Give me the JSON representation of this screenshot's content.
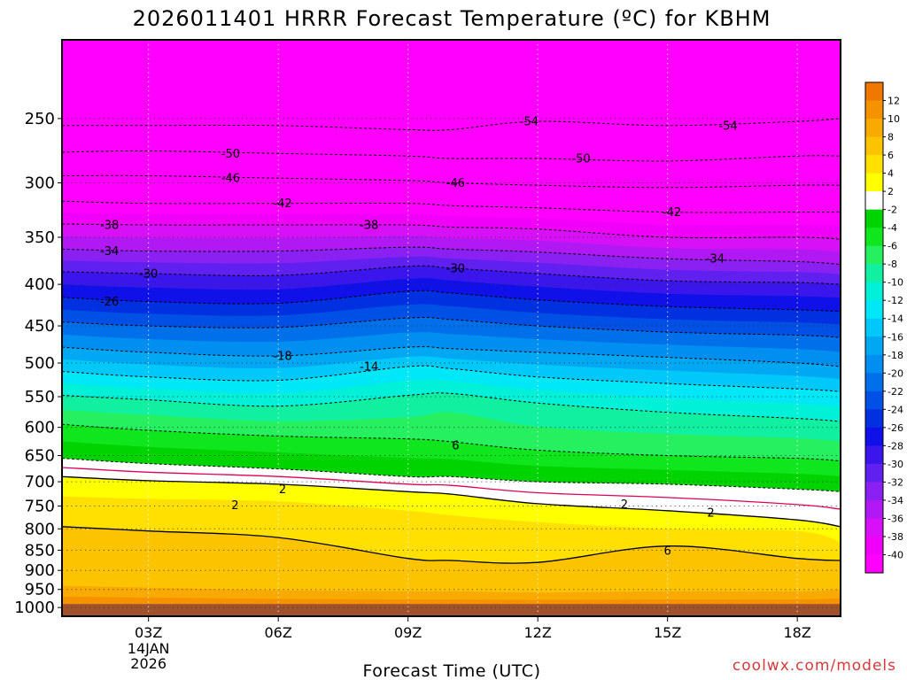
{
  "chart_data": {
    "type": "heatmap",
    "title": "2026011401 HRRR Forecast Temperature (ºC) for KBHM",
    "xlabel": "Forecast Time (UTC)",
    "ylabel": "",
    "x_ticks": [
      {
        "hour": 3,
        "label": "03Z",
        "sub": [
          "14JAN",
          "2026"
        ]
      },
      {
        "hour": 6,
        "label": "06Z",
        "sub": []
      },
      {
        "hour": 9,
        "label": "09Z",
        "sub": []
      },
      {
        "hour": 12,
        "label": "12Z",
        "sub": []
      },
      {
        "hour": 15,
        "label": "15Z",
        "sub": []
      },
      {
        "hour": 18,
        "label": "18Z",
        "sub": []
      }
    ],
    "xlim": [
      1,
      19
    ],
    "y_ticks": [
      250,
      300,
      350,
      400,
      450,
      500,
      550,
      600,
      650,
      700,
      750,
      800,
      850,
      900,
      950,
      1000
    ],
    "ylim": [
      200,
      1025
    ],
    "y_scale": "log",
    "grid": true,
    "underground_color": "#a0522d",
    "colorbar": {
      "levels": [
        -40,
        -38,
        -36,
        -34,
        -32,
        -30,
        -28,
        -26,
        -24,
        -22,
        -20,
        -18,
        -16,
        -14,
        -12,
        -10,
        -8,
        -6,
        -4,
        -2,
        2,
        4,
        6,
        8,
        10,
        12
      ],
      "labels": [
        "12",
        "10",
        "8",
        "6",
        "4",
        "2",
        "-2",
        "-4",
        "-6",
        "-8",
        "-10",
        "-12",
        "-14",
        "-16",
        "-18",
        "-20",
        "-22",
        "-24",
        "-26",
        "-28",
        "-30",
        "-32",
        "-34",
        "-36",
        "-38",
        "-40"
      ],
      "bins": [
        {
          "lo": 12,
          "hi": 14,
          "color": "#f07800"
        },
        {
          "lo": 10,
          "hi": 12,
          "color": "#f59200"
        },
        {
          "lo": 8,
          "hi": 10,
          "color": "#f9aa00"
        },
        {
          "lo": 6,
          "hi": 8,
          "color": "#fcc400"
        },
        {
          "lo": 4,
          "hi": 6,
          "color": "#ffe000"
        },
        {
          "lo": 2,
          "hi": 4,
          "color": "#ffff00"
        },
        {
          "lo": -2,
          "hi": 2,
          "color": "#ffffff"
        },
        {
          "lo": -4,
          "hi": -2,
          "color": "#00d400"
        },
        {
          "lo": -6,
          "hi": -4,
          "color": "#10e61e"
        },
        {
          "lo": -8,
          "hi": -6,
          "color": "#26f060"
        },
        {
          "lo": -10,
          "hi": -8,
          "color": "#10f0a0"
        },
        {
          "lo": -12,
          "hi": -10,
          "color": "#00f0d8"
        },
        {
          "lo": -14,
          "hi": -12,
          "color": "#00e8f8"
        },
        {
          "lo": -16,
          "hi": -14,
          "color": "#00c8f8"
        },
        {
          "lo": -18,
          "hi": -16,
          "color": "#00a8f4"
        },
        {
          "lo": -20,
          "hi": -18,
          "color": "#008ef0"
        },
        {
          "lo": -22,
          "hi": -20,
          "color": "#0070ea"
        },
        {
          "lo": -24,
          "hi": -22,
          "color": "#0050e6"
        },
        {
          "lo": -26,
          "hi": -24,
          "color": "#0030e0"
        },
        {
          "lo": -28,
          "hi": -26,
          "color": "#1010e8"
        },
        {
          "lo": -30,
          "hi": -28,
          "color": "#3a16ec"
        },
        {
          "lo": -32,
          "hi": -30,
          "color": "#6020f0"
        },
        {
          "lo": -34,
          "hi": -32,
          "color": "#8a20f2"
        },
        {
          "lo": -36,
          "hi": -34,
          "color": "#b018f4"
        },
        {
          "lo": -38,
          "hi": -36,
          "color": "#d810f8"
        },
        {
          "lo": -40,
          "hi": -38,
          "color": "#f000f8"
        },
        {
          "lo": -60,
          "hi": -40,
          "color": "#ff00ff"
        }
      ]
    },
    "profiles": [
      {
        "hour": 1,
        "points": [
          [
            230,
            -56.5
          ],
          [
            255,
            -54
          ],
          [
            275,
            -50
          ],
          [
            294,
            -46
          ],
          [
            316,
            -42
          ],
          [
            337,
            -38
          ],
          [
            362,
            -34
          ],
          [
            386,
            -30
          ],
          [
            415,
            -26
          ],
          [
            445,
            -22
          ],
          [
            478,
            -18
          ],
          [
            512,
            -14
          ],
          [
            548,
            -10
          ],
          [
            595,
            -6
          ],
          [
            655,
            -2
          ],
          [
            690,
            2
          ],
          [
            730,
            4
          ],
          [
            795,
            6
          ],
          [
            940,
            8
          ],
          [
            1000,
            12
          ]
        ]
      },
      {
        "hour": 3,
        "points": [
          [
            228,
            -56.5
          ],
          [
            255,
            -54
          ],
          [
            274,
            -50
          ],
          [
            294,
            -46
          ],
          [
            318,
            -42
          ],
          [
            338,
            -38
          ],
          [
            364,
            -34
          ],
          [
            388,
            -30
          ],
          [
            420,
            -26
          ],
          [
            450,
            -22
          ],
          [
            485,
            -18
          ],
          [
            520,
            -14
          ],
          [
            555,
            -10
          ],
          [
            605,
            -6
          ],
          [
            665,
            -2
          ],
          [
            698,
            2
          ],
          [
            735,
            4
          ],
          [
            805,
            6
          ],
          [
            945,
            8
          ],
          [
            1000,
            12
          ]
        ]
      },
      {
        "hour": 6,
        "points": [
          [
            230,
            -56.5
          ],
          [
            255,
            -54
          ],
          [
            276,
            -50
          ],
          [
            296,
            -46
          ],
          [
            318,
            -42
          ],
          [
            338,
            -38
          ],
          [
            364,
            -34
          ],
          [
            390,
            -30
          ],
          [
            422,
            -26
          ],
          [
            452,
            -22
          ],
          [
            490,
            -18
          ],
          [
            525,
            -14
          ],
          [
            565,
            -10
          ],
          [
            615,
            -6
          ],
          [
            675,
            -2
          ],
          [
            705,
            2
          ],
          [
            740,
            4
          ],
          [
            820,
            6
          ],
          [
            952,
            8
          ],
          [
            1000,
            12
          ]
        ]
      },
      {
        "hour": 9,
        "points": [
          [
            238,
            -56.5
          ],
          [
            258,
            -54
          ],
          [
            278,
            -50
          ],
          [
            298,
            -46
          ],
          [
            318,
            -42
          ],
          [
            338,
            -38
          ],
          [
            360,
            -34
          ],
          [
            380,
            -30
          ],
          [
            408,
            -26
          ],
          [
            440,
            -22
          ],
          [
            478,
            -18
          ],
          [
            505,
            -14
          ],
          [
            548,
            -10
          ],
          [
            620,
            -6
          ],
          [
            690,
            -2
          ],
          [
            720,
            2
          ],
          [
            760,
            4
          ],
          [
            870,
            6
          ],
          [
            955,
            8
          ],
          [
            1000,
            12
          ]
        ]
      },
      {
        "hour": 10,
        "points": [
          [
            240,
            -56.5
          ],
          [
            258,
            -54
          ],
          [
            280,
            -50
          ],
          [
            300,
            -46
          ],
          [
            320,
            -42
          ],
          [
            340,
            -38
          ],
          [
            362,
            -34
          ],
          [
            382,
            -30
          ],
          [
            410,
            -26
          ],
          [
            442,
            -22
          ],
          [
            480,
            -18
          ],
          [
            508,
            -14
          ],
          [
            545,
            -10
          ],
          [
            575,
            -8
          ],
          [
            625,
            -6
          ],
          [
            690,
            -2
          ],
          [
            725,
            2
          ],
          [
            770,
            4
          ],
          [
            875,
            6
          ],
          [
            955,
            8
          ],
          [
            1000,
            12
          ]
        ]
      },
      {
        "hour": 12,
        "points": [
          [
            215,
            -56.5
          ],
          [
            252,
            -54
          ],
          [
            280,
            -50
          ],
          [
            302,
            -46
          ],
          [
            322,
            -42
          ],
          [
            342,
            -38
          ],
          [
            365,
            -34
          ],
          [
            388,
            -30
          ],
          [
            418,
            -26
          ],
          [
            450,
            -22
          ],
          [
            485,
            -18
          ],
          [
            520,
            -14
          ],
          [
            560,
            -10
          ],
          [
            640,
            -6
          ],
          [
            700,
            -2
          ],
          [
            745,
            2
          ],
          [
            785,
            4
          ],
          [
            880,
            6
          ],
          [
            958,
            8
          ],
          [
            1000,
            12
          ]
        ]
      },
      {
        "hour": 15,
        "points": [
          [
            220,
            -56.5
          ],
          [
            255,
            -54
          ],
          [
            282,
            -50
          ],
          [
            304,
            -46
          ],
          [
            326,
            -42
          ],
          [
            350,
            -38
          ],
          [
            372,
            -34
          ],
          [
            396,
            -30
          ],
          [
            426,
            -26
          ],
          [
            458,
            -22
          ],
          [
            492,
            -18
          ],
          [
            530,
            -14
          ],
          [
            575,
            -10
          ],
          [
            650,
            -6
          ],
          [
            705,
            -2
          ],
          [
            760,
            2
          ],
          [
            800,
            4
          ],
          [
            840,
            6
          ],
          [
            955,
            8
          ],
          [
            1000,
            12
          ]
        ]
      },
      {
        "hour": 18,
        "points": [
          [
            225,
            -56.5
          ],
          [
            252,
            -54
          ],
          [
            278,
            -50
          ],
          [
            302,
            -46
          ],
          [
            326,
            -42
          ],
          [
            350,
            -38
          ],
          [
            375,
            -34
          ],
          [
            398,
            -30
          ],
          [
            430,
            -26
          ],
          [
            462,
            -22
          ],
          [
            500,
            -18
          ],
          [
            538,
            -14
          ],
          [
            585,
            -10
          ],
          [
            655,
            -6
          ],
          [
            715,
            -2
          ],
          [
            780,
            2
          ],
          [
            805,
            4
          ],
          [
            870,
            6
          ],
          [
            955,
            8
          ],
          [
            1000,
            12
          ]
        ]
      },
      {
        "hour": 19,
        "points": [
          [
            225,
            -56.5
          ],
          [
            250,
            -54
          ],
          [
            278,
            -50
          ],
          [
            302,
            -46
          ],
          [
            326,
            -42
          ],
          [
            352,
            -38
          ],
          [
            378,
            -34
          ],
          [
            400,
            -30
          ],
          [
            432,
            -26
          ],
          [
            465,
            -22
          ],
          [
            505,
            -18
          ],
          [
            542,
            -14
          ],
          [
            590,
            -10
          ],
          [
            660,
            -6
          ],
          [
            720,
            -2
          ],
          [
            795,
            2
          ],
          [
            830,
            4
          ],
          [
            875,
            6
          ],
          [
            950,
            8
          ],
          [
            1000,
            12
          ]
        ]
      }
    ],
    "contours": {
      "dashed": [
        -54,
        -50,
        -46,
        -42,
        -38,
        -34,
        -30,
        -26,
        -22,
        -18,
        -14,
        -10,
        -6,
        -2
      ],
      "solid": [
        2,
        6
      ],
      "freezing": 0
    },
    "contour_labels": [
      {
        "text": "-54",
        "hour": 11.8,
        "level": -54
      },
      {
        "text": "-54",
        "hour": 16.4,
        "level": -54
      },
      {
        "text": "-50",
        "hour": 4.9,
        "level": -50
      },
      {
        "text": "-50",
        "hour": 13.0,
        "level": -50
      },
      {
        "text": "-46",
        "hour": 4.9,
        "level": -46
      },
      {
        "text": "-46",
        "hour": 10.1,
        "level": -46
      },
      {
        "text": "-42",
        "hour": 6.1,
        "level": -42
      },
      {
        "text": "-42",
        "hour": 15.1,
        "level": -42
      },
      {
        "text": "-38",
        "hour": 2.1,
        "level": -38
      },
      {
        "text": "-38",
        "hour": 8.1,
        "level": -38
      },
      {
        "text": "-34",
        "hour": 2.1,
        "level": -34
      },
      {
        "text": "-34",
        "hour": 16.1,
        "level": -34
      },
      {
        "text": "-30",
        "hour": 3.0,
        "level": -30
      },
      {
        "text": "-30",
        "hour": 10.1,
        "level": -30
      },
      {
        "text": "-26",
        "hour": 2.1,
        "level": -26
      },
      {
        "text": "-18",
        "hour": 6.1,
        "level": -18
      },
      {
        "text": "-14",
        "hour": 8.1,
        "level": -14
      },
      {
        "text": "2",
        "hour": 6.1,
        "level": 2.6
      },
      {
        "text": "2",
        "hour": 5.0,
        "level": 4.2
      },
      {
        "text": "6",
        "hour": 10.1,
        "level": -5.6
      },
      {
        "text": "2",
        "hour": 14.0,
        "level": 1.0
      },
      {
        "text": "2",
        "hour": 16.0,
        "level": 2.2
      },
      {
        "text": "6",
        "hour": 15.0,
        "level": 6.2
      }
    ],
    "credit": "coolwx.com/models"
  }
}
